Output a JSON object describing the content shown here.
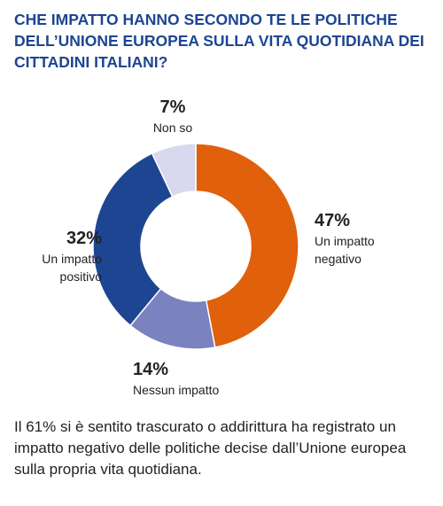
{
  "chart_data": {
    "type": "donut",
    "title": "CHE IMPATTO HANNO SECONDO TE LE POLITICHE DELL’UNIONE EUROPEA SULLA VITA QUOTIDIANA DEI CITTADINI ITALIANI?",
    "categories": [
      "Un impatto negativo",
      "Nessun impatto",
      "Un impatto positivo",
      "Non so"
    ],
    "values": [
      47,
      14,
      32,
      7
    ],
    "value_labels": [
      "47%",
      "14%",
      "32%",
      "7%"
    ],
    "colors": [
      "#e0600b",
      "#7a82bf",
      "#1d4592",
      "#d8d9ee"
    ],
    "note": "Il 61% si è sentito trascurato o addirittura ha registrato un impatto negativo delle politiche decise dall’Unione europea sulla propria vita quotidiana."
  }
}
